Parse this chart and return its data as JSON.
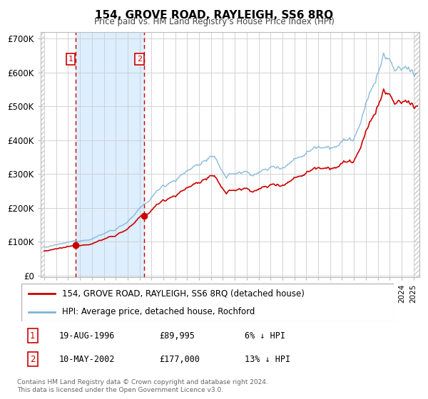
{
  "title": "154, GROVE ROAD, RAYLEIGH, SS6 8RQ",
  "subtitle": "Price paid vs. HM Land Registry's House Price Index (HPI)",
  "legend_entry1": "154, GROVE ROAD, RAYLEIGH, SS6 8RQ (detached house)",
  "legend_entry2": "HPI: Average price, detached house, Rochford",
  "purchase1_date": "19-AUG-1996",
  "purchase1_price": 89995,
  "purchase1_label": "6% ↓ HPI",
  "purchase2_date": "10-MAY-2002",
  "purchase2_price": 177000,
  "purchase2_label": "13% ↓ HPI",
  "purchase1_year": 1996.62,
  "purchase2_year": 2002.36,
  "hpi_color": "#7ab4d8",
  "price_color": "#cc0000",
  "background_color": "#ffffff",
  "shaded_color": "#ddeeff",
  "grid_color": "#cccccc",
  "hatch_color": "#cccccc",
  "ylabel_ticks": [
    "£0",
    "£100K",
    "£200K",
    "£300K",
    "£400K",
    "£500K",
    "£600K",
    "£700K"
  ],
  "ytick_values": [
    0,
    100000,
    200000,
    300000,
    400000,
    500000,
    600000,
    700000
  ],
  "xlim_start": 1993.7,
  "xlim_end": 2025.5,
  "ylim_min": -5000,
  "ylim_max": 720000,
  "footer_line1": "Contains HM Land Registry data © Crown copyright and database right 2024.",
  "footer_line2": "This data is licensed under the Open Government Licence v3.0."
}
